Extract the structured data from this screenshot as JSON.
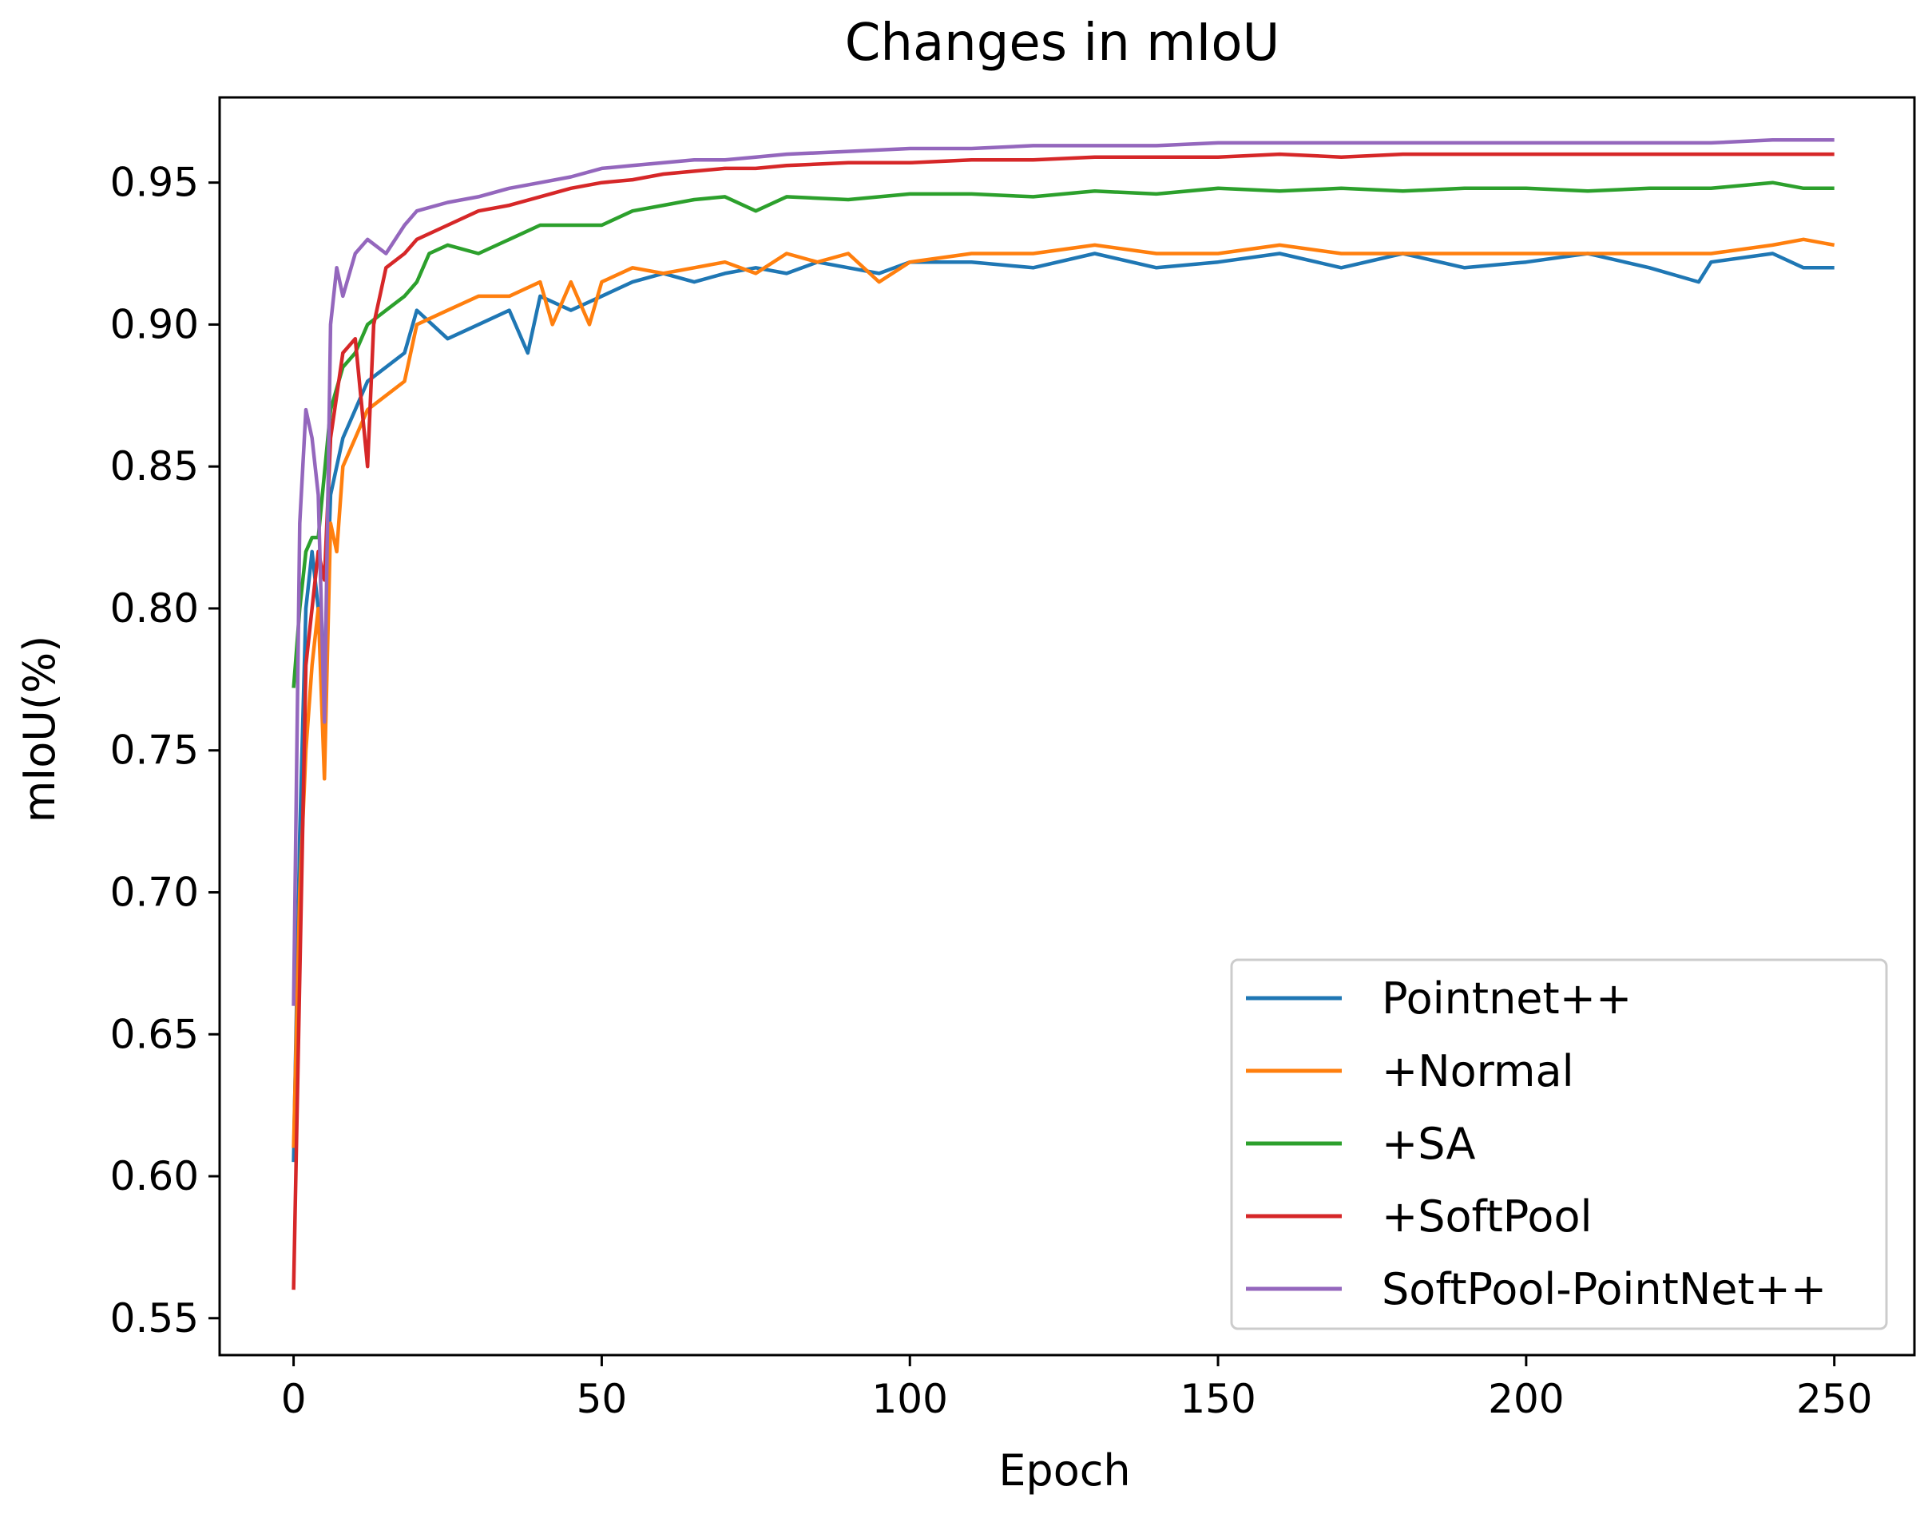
{
  "chart_data": {
    "type": "line",
    "title": "Changes in mIoU",
    "xlabel": "Epoch",
    "ylabel": "mIoU(%)",
    "xlim": [
      -12,
      263
    ],
    "ylim": [
      0.537,
      0.98
    ],
    "xticks": [
      0,
      50,
      100,
      150,
      200,
      250
    ],
    "xtick_labels": [
      "0",
      "50",
      "100",
      "150",
      "200",
      "250"
    ],
    "yticks": [
      0.55,
      0.6,
      0.65,
      0.7,
      0.75,
      0.8,
      0.85,
      0.9,
      0.95
    ],
    "ytick_labels": [
      "0.55",
      "0.60",
      "0.65",
      "0.70",
      "0.75",
      "0.80",
      "0.85",
      "0.90",
      "0.95"
    ],
    "grid": false,
    "legend_position": "lower-right",
    "series": [
      {
        "name": "Pointnet++",
        "color": "#1f77b4",
        "x": [
          0,
          1,
          2,
          3,
          4,
          5,
          6,
          8,
          10,
          12,
          15,
          18,
          20,
          25,
          30,
          35,
          38,
          40,
          45,
          50,
          55,
          60,
          65,
          70,
          75,
          80,
          85,
          90,
          95,
          100,
          110,
          120,
          130,
          140,
          150,
          160,
          170,
          180,
          190,
          200,
          210,
          220,
          228,
          230,
          240,
          245,
          250
        ],
        "y": [
          0.605,
          0.72,
          0.8,
          0.82,
          0.8,
          0.78,
          0.84,
          0.86,
          0.87,
          0.88,
          0.885,
          0.89,
          0.905,
          0.895,
          0.9,
          0.905,
          0.89,
          0.91,
          0.905,
          0.91,
          0.915,
          0.918,
          0.915,
          0.918,
          0.92,
          0.918,
          0.922,
          0.92,
          0.918,
          0.922,
          0.922,
          0.92,
          0.925,
          0.92,
          0.922,
          0.925,
          0.92,
          0.925,
          0.92,
          0.922,
          0.925,
          0.92,
          0.915,
          0.922,
          0.925,
          0.92,
          0.92
        ]
      },
      {
        "name": "+Normal",
        "color": "#ff7f0e",
        "x": [
          0,
          1,
          2,
          3,
          4,
          5,
          6,
          7,
          8,
          10,
          12,
          15,
          18,
          20,
          25,
          30,
          35,
          40,
          42,
          45,
          48,
          50,
          55,
          60,
          65,
          70,
          75,
          80,
          85,
          90,
          95,
          100,
          110,
          120,
          130,
          140,
          150,
          160,
          170,
          180,
          190,
          200,
          210,
          220,
          230,
          240,
          245,
          250
        ],
        "y": [
          0.61,
          0.7,
          0.75,
          0.78,
          0.8,
          0.74,
          0.83,
          0.82,
          0.85,
          0.86,
          0.87,
          0.875,
          0.88,
          0.9,
          0.905,
          0.91,
          0.91,
          0.915,
          0.9,
          0.915,
          0.9,
          0.915,
          0.92,
          0.918,
          0.92,
          0.922,
          0.918,
          0.925,
          0.922,
          0.925,
          0.915,
          0.922,
          0.925,
          0.925,
          0.928,
          0.925,
          0.925,
          0.928,
          0.925,
          0.925,
          0.925,
          0.925,
          0.925,
          0.925,
          0.925,
          0.928,
          0.93,
          0.928
        ]
      },
      {
        "name": "+SA",
        "color": "#2ca02c",
        "x": [
          0,
          1,
          2,
          3,
          4,
          6,
          8,
          10,
          12,
          15,
          18,
          20,
          22,
          25,
          30,
          35,
          40,
          45,
          50,
          55,
          60,
          65,
          70,
          75,
          80,
          90,
          100,
          110,
          120,
          130,
          140,
          150,
          160,
          170,
          180,
          190,
          200,
          210,
          220,
          230,
          240,
          245,
          250
        ],
        "y": [
          0.772,
          0.8,
          0.82,
          0.825,
          0.825,
          0.87,
          0.885,
          0.89,
          0.9,
          0.905,
          0.91,
          0.915,
          0.925,
          0.928,
          0.925,
          0.93,
          0.935,
          0.935,
          0.935,
          0.94,
          0.942,
          0.944,
          0.945,
          0.94,
          0.945,
          0.944,
          0.946,
          0.946,
          0.945,
          0.947,
          0.946,
          0.948,
          0.947,
          0.948,
          0.947,
          0.948,
          0.948,
          0.947,
          0.948,
          0.948,
          0.95,
          0.948,
          0.948
        ]
      },
      {
        "name": "+SoftPool",
        "color": "#d62728",
        "x": [
          0,
          1,
          2,
          3,
          4,
          5,
          6,
          8,
          10,
          12,
          13,
          15,
          18,
          20,
          25,
          30,
          35,
          40,
          45,
          50,
          55,
          60,
          65,
          70,
          75,
          80,
          90,
          100,
          110,
          120,
          130,
          140,
          150,
          160,
          170,
          180,
          190,
          200,
          210,
          220,
          230,
          240,
          250
        ],
        "y": [
          0.56,
          0.67,
          0.78,
          0.8,
          0.82,
          0.81,
          0.86,
          0.89,
          0.895,
          0.85,
          0.9,
          0.92,
          0.925,
          0.93,
          0.935,
          0.94,
          0.942,
          0.945,
          0.948,
          0.95,
          0.951,
          0.953,
          0.954,
          0.955,
          0.955,
          0.956,
          0.957,
          0.957,
          0.958,
          0.958,
          0.959,
          0.959,
          0.959,
          0.96,
          0.959,
          0.96,
          0.96,
          0.96,
          0.96,
          0.96,
          0.96,
          0.96,
          0.96
        ]
      },
      {
        "name": "SoftPool-PointNet++",
        "color": "#9467bd",
        "x": [
          0,
          1,
          2,
          3,
          4,
          5,
          6,
          7,
          8,
          10,
          12,
          15,
          18,
          20,
          25,
          30,
          35,
          40,
          45,
          50,
          55,
          60,
          65,
          70,
          75,
          80,
          90,
          100,
          110,
          120,
          130,
          140,
          150,
          160,
          170,
          180,
          190,
          200,
          210,
          220,
          230,
          240,
          250
        ],
        "y": [
          0.66,
          0.83,
          0.87,
          0.86,
          0.84,
          0.76,
          0.9,
          0.92,
          0.91,
          0.925,
          0.93,
          0.925,
          0.935,
          0.94,
          0.943,
          0.945,
          0.948,
          0.95,
          0.952,
          0.955,
          0.956,
          0.957,
          0.958,
          0.958,
          0.959,
          0.96,
          0.961,
          0.962,
          0.962,
          0.963,
          0.963,
          0.963,
          0.964,
          0.964,
          0.964,
          0.964,
          0.964,
          0.964,
          0.964,
          0.964,
          0.964,
          0.965,
          0.965
        ]
      }
    ]
  }
}
